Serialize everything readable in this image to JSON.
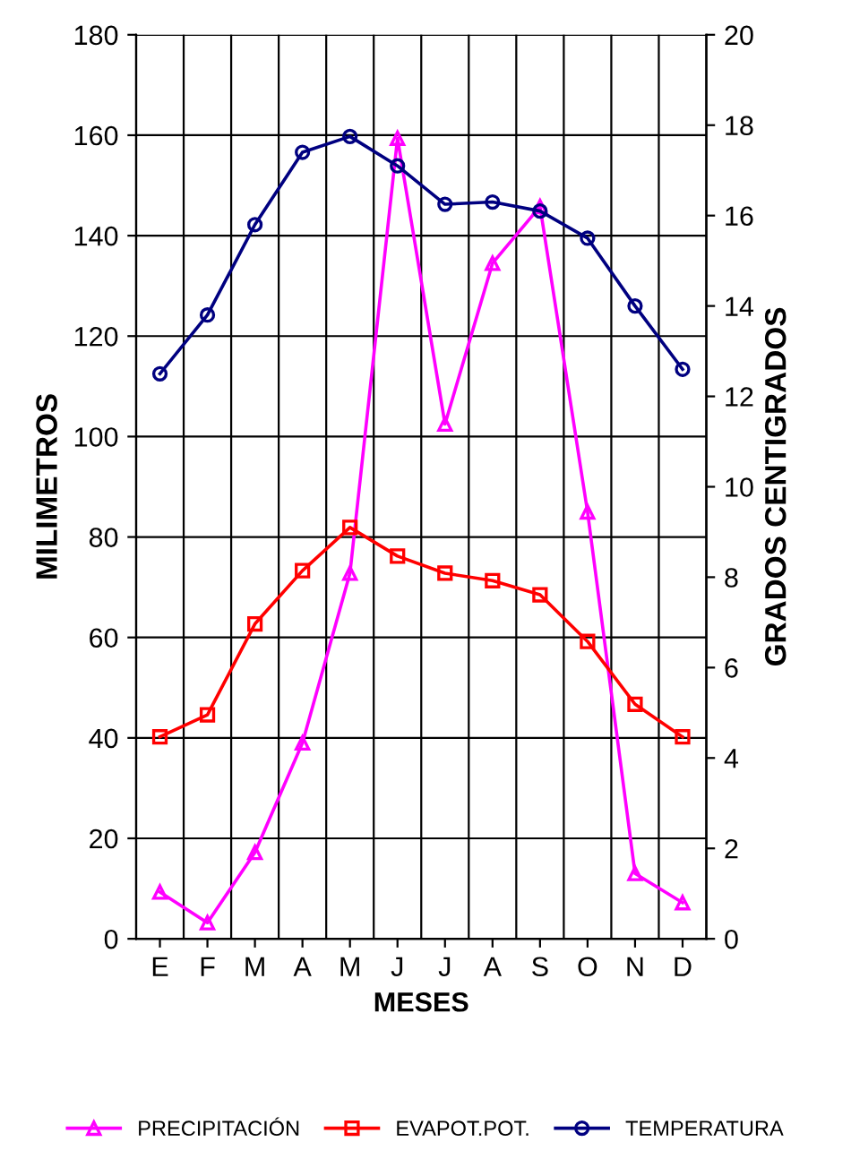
{
  "chart_data": {
    "type": "line",
    "xlabel": "MESES",
    "ylabel": "MILIMETROS",
    "y2label": "GRADOS CENTIGRADOS",
    "categories": [
      "E",
      "F",
      "M",
      "A",
      "M",
      "J",
      "J",
      "A",
      "S",
      "O",
      "N",
      "D"
    ],
    "series": [
      {
        "name": "PRECIPITACIÓN",
        "color": "#ff00ff",
        "marker": "triangle",
        "values": [
          9.3,
          3.2,
          17.2,
          39,
          72.8,
          159.4,
          102.5,
          134.5,
          145.8,
          85,
          13,
          7.2
        ]
      },
      {
        "name": "EVAPOT.POT.",
        "color": "#ff0000",
        "marker": "square",
        "values": [
          40.2,
          44.6,
          62.7,
          73.3,
          81.9,
          76.2,
          72.8,
          71.3,
          68.5,
          59.2,
          46.7,
          40.2
        ]
      },
      {
        "name": "TEMPERATURA",
        "color": "#000080",
        "marker": "circle",
        "axis": "y2",
        "values": [
          12.5,
          13.8,
          15.8,
          17.4,
          17.75,
          17.1,
          16.25,
          16.3,
          16.1,
          15.5,
          14.0,
          12.6
        ]
      }
    ],
    "ylim": [
      0,
      180
    ],
    "yticks": [
      0,
      20,
      40,
      60,
      80,
      100,
      120,
      140,
      160,
      180
    ],
    "y2lim": [
      0,
      20
    ],
    "y2ticks": [
      0,
      2,
      4,
      6,
      8,
      10,
      12,
      14,
      16,
      18,
      20
    ],
    "grid": true,
    "legend": "bottom"
  }
}
